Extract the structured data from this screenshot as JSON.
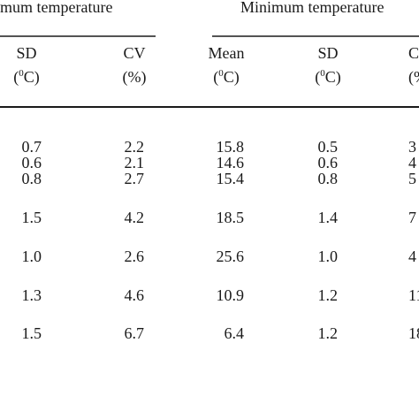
{
  "header": {
    "group_left": "mum temperature",
    "group_right": "Minimum temperature"
  },
  "columns": [
    {
      "name": "SD",
      "unit": {
        "open": "(",
        "sup": "0",
        "close": "C)"
      }
    },
    {
      "name": "CV",
      "unit": {
        "open": "(%)"
      }
    },
    {
      "name": "Mean",
      "unit": {
        "open": "(",
        "sup": "0",
        "close": "C)"
      }
    },
    {
      "name": "SD",
      "unit": {
        "open": "(",
        "sup": "0",
        "close": "C)"
      }
    },
    {
      "name": "C",
      "unit": {
        "open": "(%"
      }
    }
  ],
  "table": {
    "rows": [
      [
        "0.7",
        "2.2",
        "15.8",
        "0.5",
        "3"
      ],
      [
        "0.6",
        "2.1",
        "14.6",
        "0.6",
        "4"
      ],
      [
        "0.8",
        "2.7",
        "15.4",
        "0.8",
        "5"
      ],
      [
        "1.5",
        "4.2",
        "18.5",
        "1.4",
        "7"
      ],
      [
        "1.0",
        "2.6",
        "25.6",
        "1.0",
        "4"
      ],
      [
        "1.3",
        "4.6",
        "10.9",
        "1.2",
        "11"
      ],
      [
        "1.5",
        "6.7",
        "6.4",
        "1.2",
        "18"
      ]
    ]
  }
}
